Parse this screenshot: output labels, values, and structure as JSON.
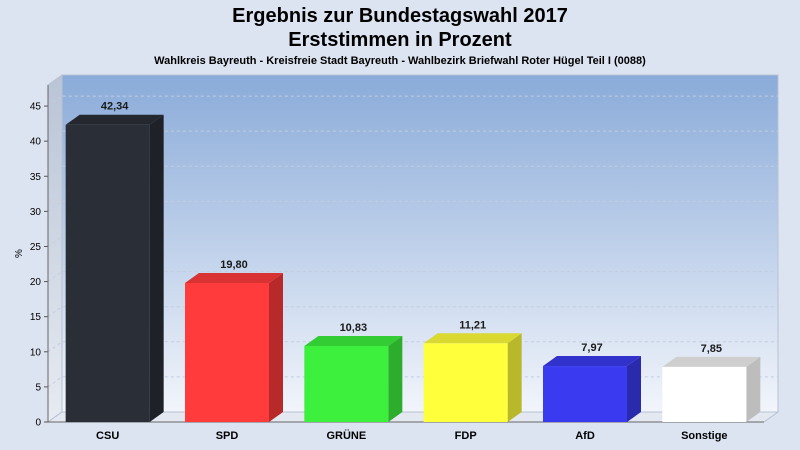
{
  "chart_data": {
    "type": "bar",
    "title": "Ergebnis zur Bundestagswahl 2017",
    "title_line2": "Erststimmen in Prozent",
    "subtitle": "Wahlkreis Bayreuth - Kreisfreie Stadt Bayreuth - Wahlbezirk Briefwahl Roter Hügel Teil I (0088)",
    "ylabel": "%",
    "xlabel": "",
    "ylim": [
      0,
      48
    ],
    "yticks": [
      0,
      5,
      10,
      15,
      20,
      25,
      30,
      35,
      40,
      45
    ],
    "grid": true,
    "categories": [
      "CSU",
      "SPD",
      "GRÜNE",
      "FDP",
      "AfD",
      "Sonstige"
    ],
    "values": [
      42.34,
      19.8,
      10.83,
      11.21,
      7.97,
      7.85
    ],
    "value_labels": [
      "42,34",
      "19,80",
      "10,83",
      "11,21",
      "7,97",
      "7,85"
    ],
    "colors": [
      "#2a2e36",
      "#ff3b3b",
      "#3df03d",
      "#ffff3b",
      "#3a3af0",
      "#ffffff"
    ]
  }
}
